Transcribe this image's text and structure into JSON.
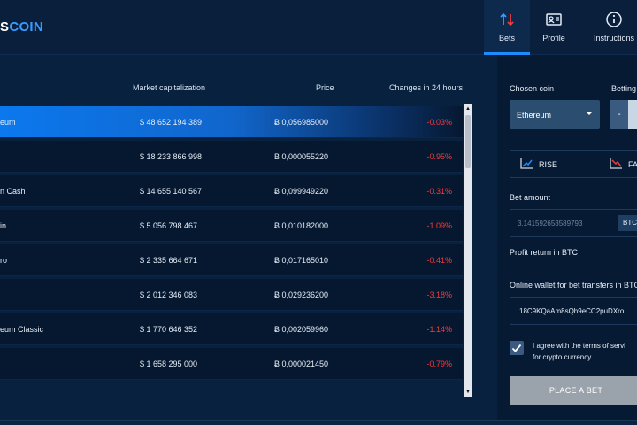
{
  "app": {
    "logo_prefix": "S",
    "logo_main": "COIN"
  },
  "nav": {
    "bets": "Bets",
    "profile": "Profile",
    "instructions": "Instructions"
  },
  "table": {
    "headers": {
      "cap": "Market capitalization",
      "price": "Price",
      "change": "Changes in 24 hours"
    },
    "rows": [
      {
        "name": "eum",
        "cap": "$ 48 652 194 389",
        "price": "Ƀ 0,056985000",
        "change": "-0.03%"
      },
      {
        "name": "",
        "cap": "$ 18 233 866 998",
        "price": "Ƀ 0,000055220",
        "change": "-0.95%"
      },
      {
        "name": "n Cash",
        "cap": "$ 14 655 140 567",
        "price": "Ƀ 0,099949220",
        "change": "-0.31%"
      },
      {
        "name": "in",
        "cap": "$ 5 056 798 467",
        "price": "Ƀ 0,010182000",
        "change": "-1.09%"
      },
      {
        "name": "ro",
        "cap": "$ 2 335 664 671",
        "price": "Ƀ 0,017165010",
        "change": "-0.41%"
      },
      {
        "name": "",
        "cap": "$ 2 012 346 083",
        "price": "Ƀ 0,029236200",
        "change": "-3.18%"
      },
      {
        "name": "eum Classic",
        "cap": "$ 1 770 646 352",
        "price": "Ƀ 0,002059960",
        "change": "-1.14%"
      },
      {
        "name": "",
        "cap": "$ 1 658 295 000",
        "price": "Ƀ 0,000021450",
        "change": "-0.79%"
      }
    ]
  },
  "bet": {
    "chosen_coin_label": "Chosen coin",
    "chosen_coin_value": "Ethereum",
    "betting_label": "Betting",
    "stepper_minus": "-",
    "rise_label": "RISE",
    "fall_label": "FA",
    "amount_label": "Bet amount",
    "amount_value": "3.141592653589793",
    "amount_currency": "BTC",
    "profit_label": "Profit return in BTC",
    "wallet_label": "Online wallet for bet transfers in BTC",
    "wallet_value": "18C9KQaAm8sQh9eCC2puDXro",
    "terms_line1": "I agree with the terms of servi",
    "terms_line2": "for crypto currency",
    "place_bet": "PLACE A BET"
  },
  "colors": {
    "accent": "#1d8cff",
    "negative": "#f23b3b",
    "background": "#071a33"
  }
}
